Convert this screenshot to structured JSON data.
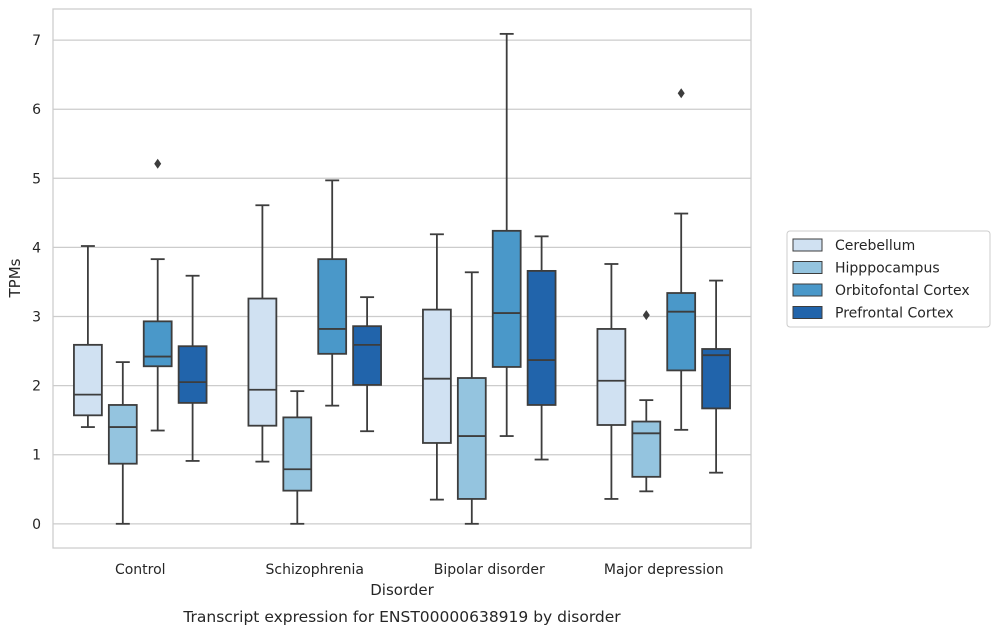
{
  "chart_data": {
    "type": "box",
    "caption": "Transcript expression for ENST00000638919 by disorder",
    "xlabel": "Disorder",
    "ylabel": "TPMs",
    "ylim": [
      -0.35,
      7.45
    ],
    "yticks": [
      0,
      1,
      2,
      3,
      4,
      5,
      6,
      7
    ],
    "grid": "horizontal",
    "legend_position": "right",
    "categories": [
      "Control",
      "Schizophrenia",
      "Bipolar disorder",
      "Major depression"
    ],
    "series": [
      {
        "name": "Cerebellum",
        "color": "#d0e1f2",
        "boxes": [
          {
            "whislo": 1.4,
            "q1": 1.57,
            "med": 1.87,
            "q3": 2.59,
            "whishi": 4.02,
            "fliers": []
          },
          {
            "whislo": 0.9,
            "q1": 1.42,
            "med": 1.94,
            "q3": 3.26,
            "whishi": 4.61,
            "fliers": []
          },
          {
            "whislo": 0.35,
            "q1": 1.17,
            "med": 2.1,
            "q3": 3.1,
            "whishi": 4.19,
            "fliers": []
          },
          {
            "whislo": 0.36,
            "q1": 1.43,
            "med": 2.07,
            "q3": 2.82,
            "whishi": 3.76,
            "fliers": []
          }
        ]
      },
      {
        "name": "Hipppocampus",
        "color": "#94c4df",
        "boxes": [
          {
            "whislo": 0.0,
            "q1": 0.87,
            "med": 1.4,
            "q3": 1.72,
            "whishi": 2.34,
            "fliers": []
          },
          {
            "whislo": 0.0,
            "q1": 0.48,
            "med": 0.79,
            "q3": 1.54,
            "whishi": 1.92,
            "fliers": []
          },
          {
            "whislo": 0.0,
            "q1": 0.36,
            "med": 1.27,
            "q3": 2.11,
            "whishi": 3.64,
            "fliers": []
          },
          {
            "whislo": 0.47,
            "q1": 0.68,
            "med": 1.31,
            "q3": 1.48,
            "whishi": 1.79,
            "fliers": [
              3.02
            ]
          }
        ]
      },
      {
        "name": "Orbitofontal Cortex",
        "color": "#4a98c9",
        "boxes": [
          {
            "whislo": 1.35,
            "q1": 2.28,
            "med": 2.42,
            "q3": 2.93,
            "whishi": 3.83,
            "fliers": [
              5.21
            ]
          },
          {
            "whislo": 1.71,
            "q1": 2.46,
            "med": 2.82,
            "q3": 3.83,
            "whishi": 4.97,
            "fliers": []
          },
          {
            "whislo": 1.27,
            "q1": 2.27,
            "med": 3.05,
            "q3": 4.24,
            "whishi": 7.09,
            "fliers": []
          },
          {
            "whislo": 1.36,
            "q1": 2.22,
            "med": 3.07,
            "q3": 3.34,
            "whishi": 4.49,
            "fliers": [
              6.23
            ]
          }
        ]
      },
      {
        "name": "Prefrontal Cortex",
        "color": "#2164ab",
        "boxes": [
          {
            "whislo": 0.91,
            "q1": 1.75,
            "med": 2.05,
            "q3": 2.57,
            "whishi": 3.59,
            "fliers": []
          },
          {
            "whislo": 1.34,
            "q1": 2.01,
            "med": 2.59,
            "q3": 2.86,
            "whishi": 3.28,
            "fliers": []
          },
          {
            "whislo": 0.93,
            "q1": 1.72,
            "med": 2.37,
            "q3": 3.66,
            "whishi": 4.16,
            "fliers": []
          },
          {
            "whislo": 0.74,
            "q1": 1.67,
            "med": 2.44,
            "q3": 2.53,
            "whishi": 3.52,
            "fliers": []
          }
        ]
      }
    ]
  }
}
